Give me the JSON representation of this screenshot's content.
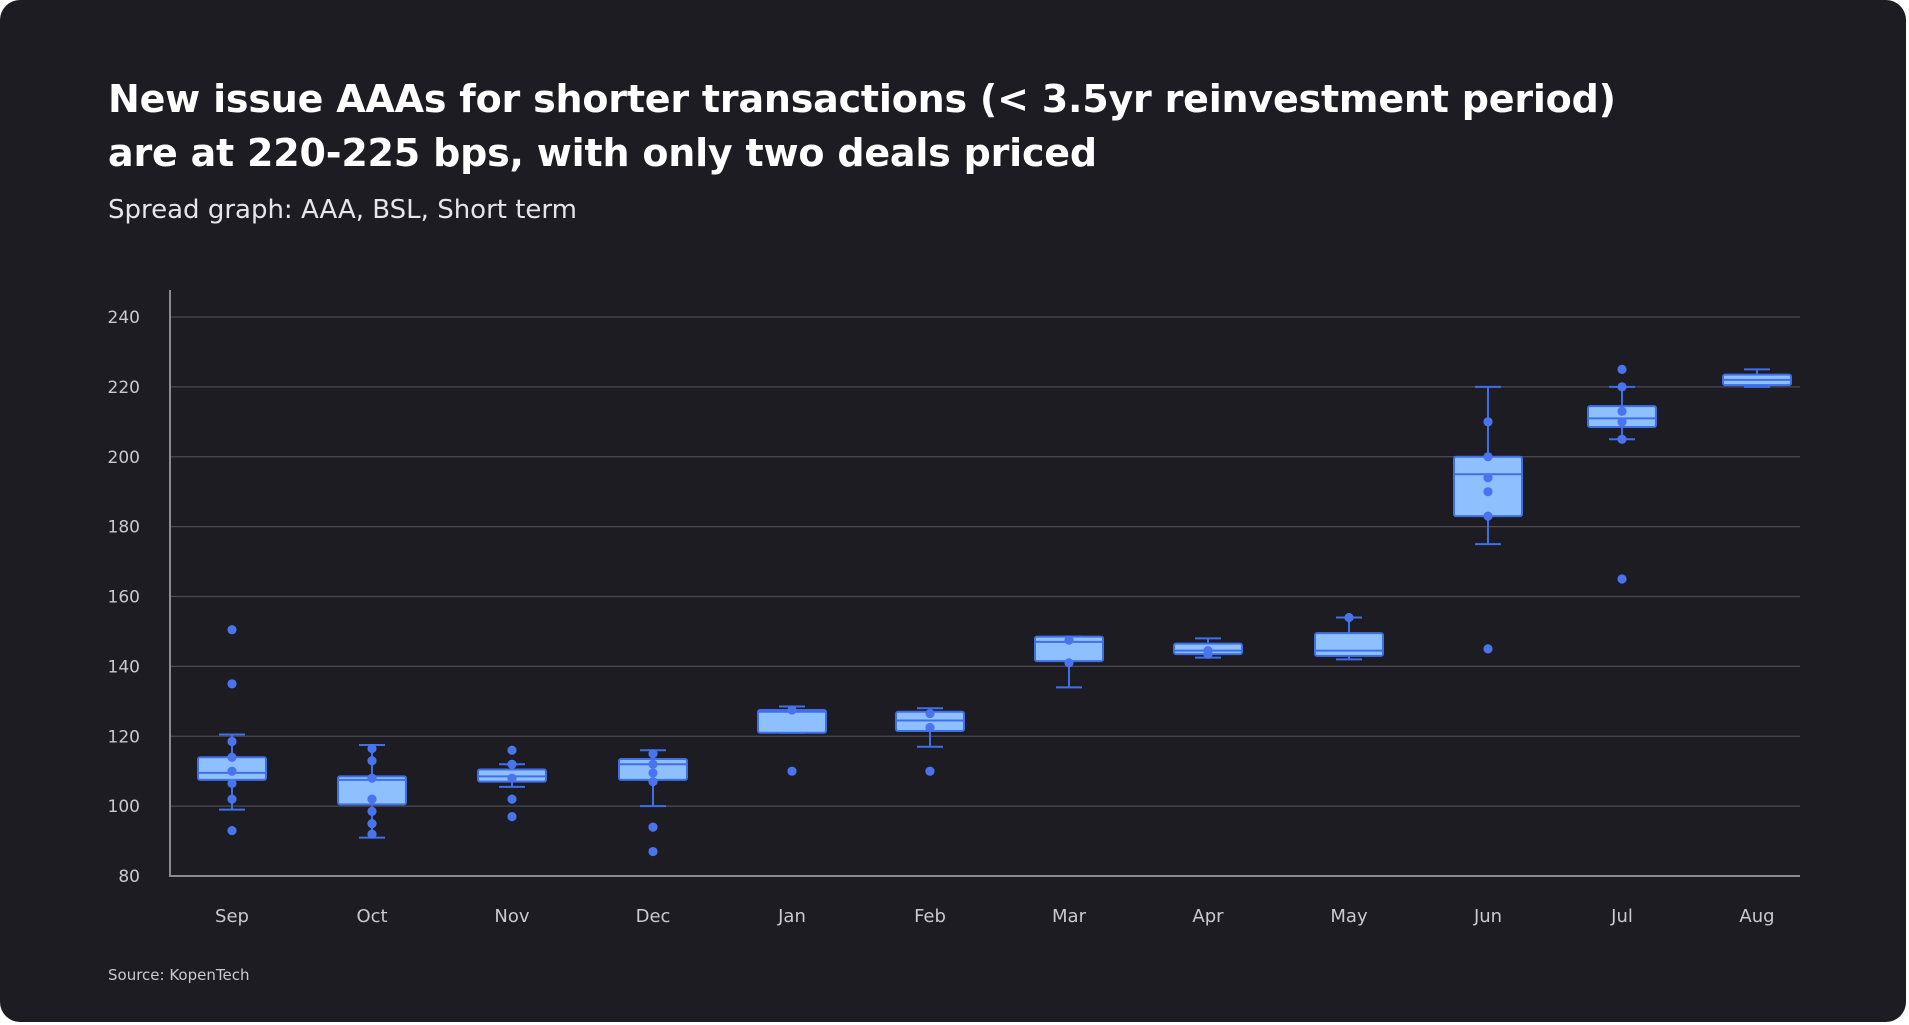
{
  "title_line1": "New issue AAAs for shorter transactions (< 3.5yr reinvestment period)",
  "title_line2": "are at 220-225 bps, with only two deals priced",
  "subtitle": "Spread graph: AAA, BSL, Short term",
  "source": "Source: KopenTech",
  "colors": {
    "background": "#1c1c22",
    "box_fill": "#8ec0ff",
    "box_stroke": "#3f6fe8",
    "point": "#4a74ee",
    "grid": "#4a4a52",
    "axis_text": "#c9c9cf"
  },
  "chart_data": {
    "type": "box",
    "ylim": [
      80,
      240
    ],
    "yticks": [
      80,
      100,
      120,
      140,
      160,
      180,
      200,
      220,
      240
    ],
    "grid": "horizontal",
    "categories": [
      "Sep",
      "Oct",
      "Nov",
      "Dec",
      "Jan",
      "Feb",
      "Mar",
      "Apr",
      "May",
      "Jun",
      "Jul",
      "Aug"
    ],
    "boxes": [
      {
        "category": "Sep",
        "whisker_low": 99,
        "q1": 107.5,
        "median": 109.5,
        "q3": 114,
        "whisker_high": 120.5,
        "points": [
          150.5,
          135,
          118.5,
          114,
          110,
          106.5,
          102,
          93
        ]
      },
      {
        "category": "Oct",
        "whisker_low": 91,
        "q1": 100.5,
        "median": 107.5,
        "q3": 108.5,
        "whisker_high": 117.5,
        "points": [
          116.5,
          113,
          108,
          102,
          98.5,
          95,
          92
        ]
      },
      {
        "category": "Nov",
        "whisker_low": 105.5,
        "q1": 107,
        "median": 108.5,
        "q3": 110.5,
        "whisker_high": 112,
        "points": [
          116,
          112,
          108,
          102,
          97
        ]
      },
      {
        "category": "Dec",
        "whisker_low": 100,
        "q1": 107.5,
        "median": 112,
        "q3": 113.5,
        "whisker_high": 116,
        "points": [
          115,
          112,
          109.5,
          107,
          94,
          87
        ]
      },
      {
        "category": "Jan",
        "whisker_low": 121,
        "q1": 121,
        "median": 127,
        "q3": 127.5,
        "whisker_high": 128.5,
        "points": [
          127.5,
          110
        ]
      },
      {
        "category": "Feb",
        "whisker_low": 117,
        "q1": 121.5,
        "median": 124.5,
        "q3": 127,
        "whisker_high": 128,
        "points": [
          126.5,
          122.5,
          110
        ]
      },
      {
        "category": "Mar",
        "whisker_low": 134,
        "q1": 141.5,
        "median": 147,
        "q3": 148.5,
        "whisker_high": 148.5,
        "points": [
          147.5,
          141
        ]
      },
      {
        "category": "Apr",
        "whisker_low": 142.5,
        "q1": 143.5,
        "median": 144.5,
        "q3": 146.5,
        "whisker_high": 148,
        "points": [
          144.5,
          143.5
        ]
      },
      {
        "category": "May",
        "whisker_low": 142,
        "q1": 143,
        "median": 144.5,
        "q3": 149.5,
        "whisker_high": 154,
        "points": [
          154
        ]
      },
      {
        "category": "Jun",
        "whisker_low": 175,
        "q1": 183,
        "median": 195,
        "q3": 200,
        "whisker_high": 220,
        "points": [
          210,
          200,
          194,
          190,
          183,
          145
        ]
      },
      {
        "category": "Jul",
        "whisker_low": 205,
        "q1": 208.5,
        "median": 211,
        "q3": 214.5,
        "whisker_high": 220,
        "points": [
          225,
          220,
          213,
          210,
          205,
          165
        ]
      },
      {
        "category": "Aug",
        "whisker_low": 220,
        "q1": 220.5,
        "median": 222,
        "q3": 223.5,
        "whisker_high": 225,
        "points": []
      }
    ]
  }
}
